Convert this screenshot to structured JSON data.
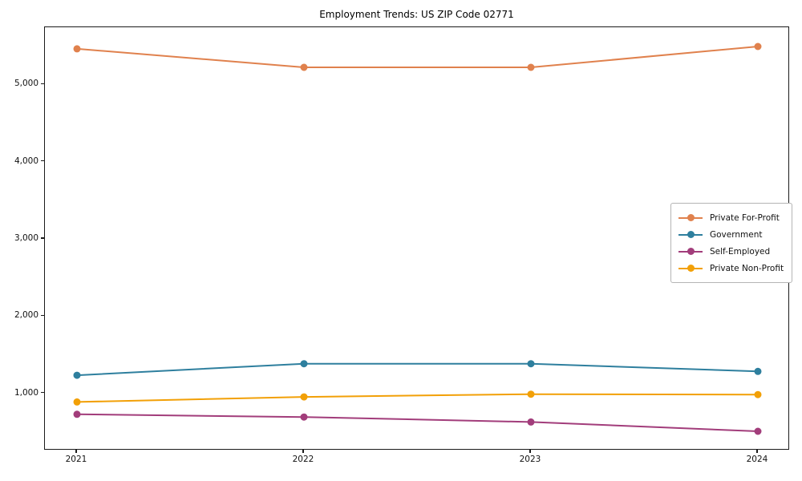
{
  "chart": {
    "title": "Employment Trends: US ZIP Code 02771"
  },
  "chart_data": {
    "type": "line",
    "title": "Employment Trends: US ZIP Code 02771",
    "xlabel": "",
    "ylabel": "",
    "grid": false,
    "legend_position": "center-right",
    "x": [
      2021,
      2022,
      2023,
      2024
    ],
    "x_tick_labels": [
      "2021",
      "2022",
      "2023",
      "2024"
    ],
    "y_ticks": [
      1000,
      2000,
      3000,
      4000,
      5000
    ],
    "y_tick_labels": [
      "1,000",
      "2,000",
      "3,000",
      "4,000",
      "5,000"
    ],
    "ylim": [
      261,
      5739
    ],
    "series": [
      {
        "name": "Private For-Profit",
        "color": "#e0814d",
        "values": [
          5460,
          5220,
          5220,
          5490
        ]
      },
      {
        "name": "Government",
        "color": "#2e7f9e",
        "values": [
          1235,
          1385,
          1385,
          1285
        ]
      },
      {
        "name": "Self-Employed",
        "color": "#a23d7b",
        "values": [
          730,
          695,
          630,
          510
        ]
      },
      {
        "name": "Private Non-Profit",
        "color": "#f2a007",
        "values": [
          890,
          955,
          990,
          985
        ]
      }
    ]
  }
}
